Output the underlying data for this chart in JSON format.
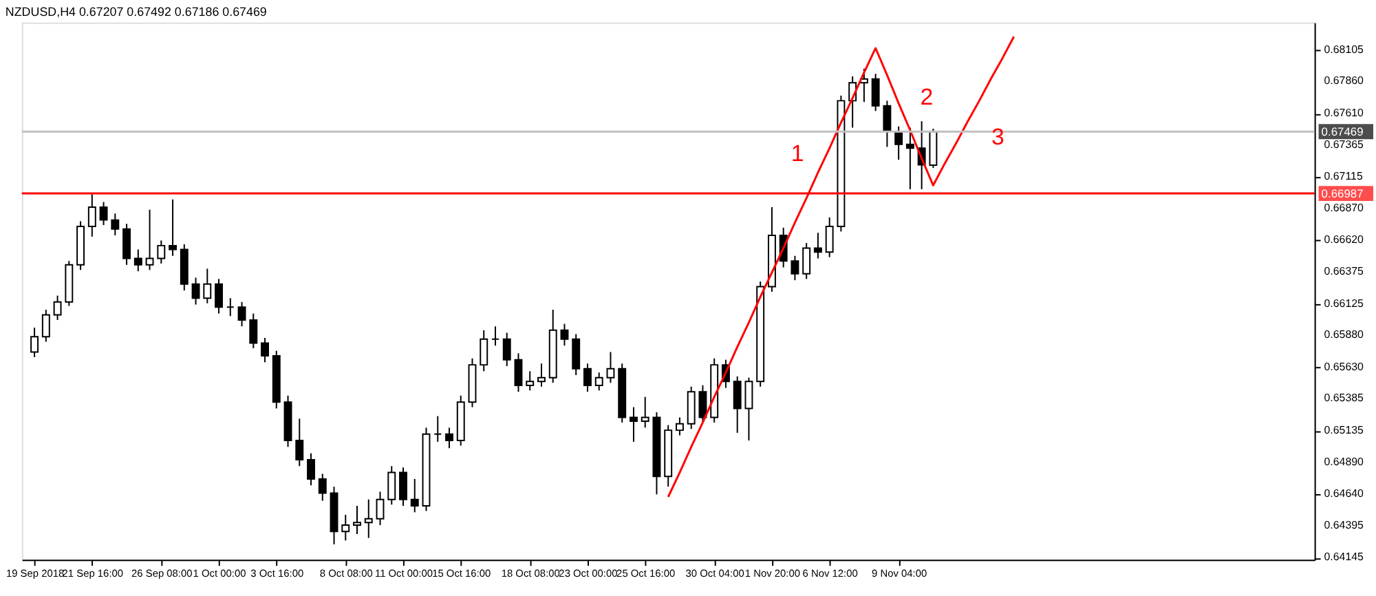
{
  "chart_data": {
    "type": "candlestick",
    "title": "NZDUSD,H4 0.67207 0.67492 0.67186 0.67469",
    "categories": [
      "19 Sep 2018",
      null,
      null,
      null,
      null,
      "21 Sep 16:00",
      null,
      null,
      null,
      null,
      null,
      "26 Sep 08:00",
      null,
      null,
      null,
      null,
      "1 Oct 00:00",
      null,
      null,
      null,
      null,
      "3 Oct 16:00",
      null,
      null,
      null,
      null,
      null,
      "8 Oct 08:00",
      null,
      null,
      null,
      null,
      "11 Oct 00:00",
      null,
      null,
      null,
      null,
      "15 Oct 16:00",
      null,
      null,
      null,
      null,
      null,
      "18 Oct 08:00",
      null,
      null,
      null,
      null,
      "23 Oct 00:00",
      null,
      null,
      null,
      null,
      "25 Oct 16:00",
      null,
      null,
      null,
      null,
      null,
      "30 Oct 04:00",
      null,
      null,
      null,
      null,
      "1 Nov 20:00",
      null,
      null,
      null,
      null,
      "6 Nov 12:00",
      null,
      null,
      null,
      null,
      null,
      "9 Nov 04:00",
      null,
      null,
      null,
      null,
      null,
      null,
      null,
      null,
      null,
      null,
      null,
      null,
      null,
      null,
      null,
      null,
      null,
      null,
      null,
      null,
      null,
      null,
      null,
      null,
      null,
      null,
      null,
      null,
      null,
      null,
      null,
      null,
      null,
      null,
      null
    ],
    "ohlc": [
      [
        0.6575,
        0.6594,
        0.6571,
        0.6587
      ],
      [
        0.6587,
        0.6608,
        0.6583,
        0.6604
      ],
      [
        0.6604,
        0.6619,
        0.66,
        0.6614
      ],
      [
        0.6614,
        0.6646,
        0.6611,
        0.6643
      ],
      [
        0.6643,
        0.6677,
        0.6639,
        0.6673
      ],
      [
        0.6673,
        0.6698,
        0.6665,
        0.6688
      ],
      [
        0.6688,
        0.6692,
        0.6674,
        0.6678
      ],
      [
        0.6678,
        0.6683,
        0.6666,
        0.6671
      ],
      [
        0.6671,
        0.6675,
        0.6643,
        0.6648
      ],
      [
        0.6648,
        0.6655,
        0.6638,
        0.6643
      ],
      [
        0.6643,
        0.6686,
        0.6639,
        0.6648
      ],
      [
        0.6648,
        0.6662,
        0.6644,
        0.6658
      ],
      [
        0.6658,
        0.6694,
        0.665,
        0.6655
      ],
      [
        0.6655,
        0.6659,
        0.6623,
        0.6628
      ],
      [
        0.6628,
        0.6633,
        0.6612,
        0.6617
      ],
      [
        0.6617,
        0.664,
        0.6613,
        0.6628
      ],
      [
        0.6628,
        0.6632,
        0.6605,
        0.661
      ],
      [
        0.661,
        0.6617,
        0.6603,
        0.661
      ],
      [
        0.661,
        0.6614,
        0.6595,
        0.66
      ],
      [
        0.66,
        0.6605,
        0.6578,
        0.6582
      ],
      [
        0.6582,
        0.6586,
        0.6567,
        0.6572
      ],
      [
        0.6572,
        0.6576,
        0.6531,
        0.6536
      ],
      [
        0.6536,
        0.6541,
        0.6501,
        0.6506
      ],
      [
        0.6506,
        0.6523,
        0.6486,
        0.6491
      ],
      [
        0.6491,
        0.6496,
        0.6471,
        0.6476
      ],
      [
        0.6476,
        0.648,
        0.6459,
        0.6465
      ],
      [
        0.6465,
        0.647,
        0.6425,
        0.6435
      ],
      [
        0.6435,
        0.6448,
        0.6428,
        0.644
      ],
      [
        0.644,
        0.6455,
        0.6433,
        0.6442
      ],
      [
        0.6442,
        0.646,
        0.643,
        0.6445
      ],
      [
        0.6445,
        0.6466,
        0.644,
        0.646
      ],
      [
        0.646,
        0.6486,
        0.6456,
        0.6481
      ],
      [
        0.6481,
        0.6485,
        0.6455,
        0.646
      ],
      [
        0.646,
        0.6476,
        0.645,
        0.6455
      ],
      [
        0.6455,
        0.6516,
        0.6451,
        0.6511
      ],
      [
        0.6511,
        0.6525,
        0.6505,
        0.6511
      ],
      [
        0.6511,
        0.6516,
        0.65,
        0.6506
      ],
      [
        0.6506,
        0.6541,
        0.6502,
        0.6536
      ],
      [
        0.6536,
        0.657,
        0.6532,
        0.6565
      ],
      [
        0.6565,
        0.6592,
        0.656,
        0.6585
      ],
      [
        0.6585,
        0.6595,
        0.658,
        0.6585
      ],
      [
        0.6585,
        0.659,
        0.6564,
        0.6569
      ],
      [
        0.6569,
        0.6574,
        0.6544,
        0.6549
      ],
      [
        0.6549,
        0.656,
        0.6545,
        0.6552
      ],
      [
        0.6552,
        0.6566,
        0.6548,
        0.6555
      ],
      [
        0.6555,
        0.6608,
        0.6551,
        0.6592
      ],
      [
        0.6592,
        0.6597,
        0.658,
        0.6585
      ],
      [
        0.6585,
        0.6589,
        0.6557,
        0.6562
      ],
      [
        0.6562,
        0.6566,
        0.6544,
        0.6549
      ],
      [
        0.6549,
        0.6559,
        0.6545,
        0.6555
      ],
      [
        0.6555,
        0.6575,
        0.6551,
        0.6562
      ],
      [
        0.6562,
        0.6566,
        0.652,
        0.6524
      ],
      [
        0.6524,
        0.6532,
        0.6505,
        0.6521
      ],
      [
        0.6521,
        0.654,
        0.6516,
        0.6524
      ],
      [
        0.6524,
        0.6528,
        0.6464,
        0.6478
      ],
      [
        0.6478,
        0.6518,
        0.647,
        0.6514
      ],
      [
        0.6514,
        0.6524,
        0.651,
        0.6519
      ],
      [
        0.6519,
        0.6548,
        0.6515,
        0.6544
      ],
      [
        0.6544,
        0.6549,
        0.652,
        0.6524
      ],
      [
        0.6524,
        0.657,
        0.652,
        0.6565
      ],
      [
        0.6565,
        0.6569,
        0.6547,
        0.6552
      ],
      [
        0.6552,
        0.6556,
        0.6512,
        0.6531
      ],
      [
        0.6531,
        0.6555,
        0.6506,
        0.6552
      ],
      [
        0.6552,
        0.663,
        0.6548,
        0.6626
      ],
      [
        0.6626,
        0.6688,
        0.6622,
        0.6666
      ],
      [
        0.6666,
        0.6672,
        0.6641,
        0.6646
      ],
      [
        0.6646,
        0.665,
        0.6631,
        0.6636
      ],
      [
        0.6636,
        0.666,
        0.6632,
        0.6656
      ],
      [
        0.6656,
        0.6668,
        0.6648,
        0.6653
      ],
      [
        0.6653,
        0.668,
        0.6649,
        0.6673
      ],
      [
        0.6673,
        0.6775,
        0.6669,
        0.6771
      ],
      [
        0.6771,
        0.679,
        0.675,
        0.6785
      ],
      [
        0.6785,
        0.6796,
        0.677,
        0.6788
      ],
      [
        0.6788,
        0.6792,
        0.6763,
        0.6767
      ],
      [
        0.6767,
        0.6771,
        0.6735,
        0.6747
      ],
      [
        0.6747,
        0.6751,
        0.6725,
        0.6737
      ],
      [
        0.6737,
        0.675,
        0.6702,
        0.6734
      ],
      [
        0.6734,
        0.6755,
        0.6702,
        0.6721
      ],
      [
        0.67207,
        0.67492,
        0.67186,
        0.67469
      ],
      null,
      null,
      null,
      null,
      null,
      null,
      null,
      null,
      null,
      null,
      null,
      null,
      null,
      null,
      null,
      null,
      null,
      null,
      null,
      null,
      null,
      null,
      null,
      null,
      null,
      null,
      null,
      null,
      null,
      null,
      null,
      null
    ],
    "series": [
      {
        "type": "line",
        "color": "#ff0000",
        "values": [
          null,
          null,
          null,
          null,
          null,
          null,
          null,
          null,
          null,
          null,
          null,
          null,
          null,
          null,
          null,
          null,
          null,
          null,
          null,
          null,
          null,
          null,
          null,
          null,
          null,
          null,
          null,
          null,
          null,
          null,
          null,
          null,
          null,
          null,
          null,
          null,
          null,
          null,
          null,
          null,
          null,
          null,
          null,
          null,
          null,
          null,
          null,
          null,
          null,
          null,
          null,
          null,
          null,
          null,
          null,
          0.6462,
          0.6481,
          0.6501,
          0.652,
          0.654,
          0.6559,
          0.6579,
          0.6598,
          0.6618,
          0.6637,
          0.6656,
          0.6676,
          0.6695,
          0.6715,
          0.6734,
          0.6754,
          0.6773,
          0.6793,
          0.6812,
          0.6791,
          0.6769,
          0.6748,
          0.6726,
          0.6705,
          0.6722,
          0.6738,
          0.6755,
          0.6771,
          0.6788,
          0.6804,
          0.6821,
          null,
          null,
          null,
          null,
          null,
          null,
          null,
          null,
          null,
          null,
          null,
          null,
          null,
          null,
          null,
          null,
          null,
          null,
          null,
          null,
          null,
          null,
          null,
          null,
          null
        ]
      }
    ],
    "ylim": [
      0.6413,
      0.6832
    ],
    "yticks": [
      0.68105,
      {
        "value": 0.6786,
        "label": "0.67860"
      },
      {
        "value": 0.6761,
        "label": "0.67610"
      },
      0.67365,
      0.67115,
      {
        "value": 0.6687,
        "label": "0.66870"
      },
      {
        "value": 0.6662,
        "label": "0.66620"
      },
      0.66375,
      0.66125,
      {
        "value": 0.6588,
        "label": "0.65880"
      },
      {
        "value": 0.6563,
        "label": "0.65630"
      },
      0.65385,
      0.65135,
      {
        "value": 0.6489,
        "label": "0.64890"
      },
      {
        "value": 0.6464,
        "label": "0.64640"
      },
      0.64395,
      0.64145
    ],
    "ref_lines": [
      {
        "axis": "y",
        "value": 0.66987,
        "label": "0.66987",
        "color": "#ff0000"
      },
      {
        "axis": "y",
        "value": 0.67469,
        "label": "0.67469",
        "color": "#c0c0c0"
      }
    ],
    "annotations": [
      "1",
      "2",
      "3"
    ],
    "grid": false
  }
}
